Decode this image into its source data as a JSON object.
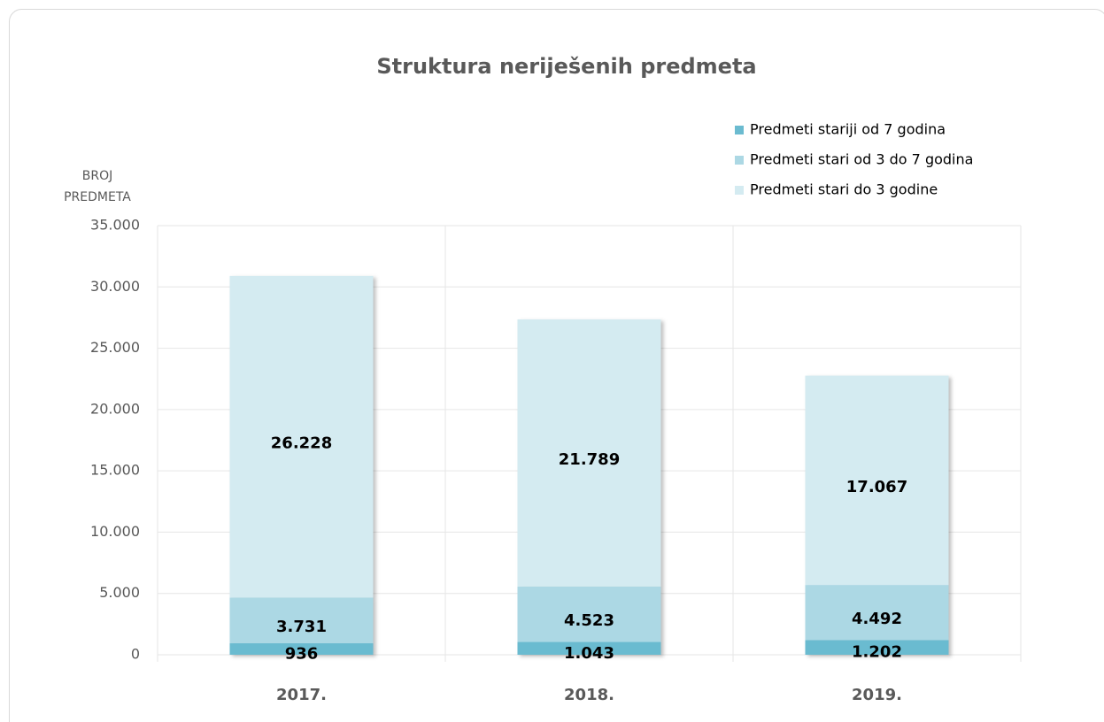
{
  "chart_data": {
    "type": "stacked_bar",
    "title": "Struktura neriješenih predmeta",
    "y_label": [
      "BROJ",
      "PREDMETA"
    ],
    "categories": [
      "2017.",
      "2018.",
      "2019."
    ],
    "series": [
      {
        "name": "Predmeti stariji od 7 godina",
        "color": "#6bbbd0",
        "values": [
          936,
          1043,
          1202
        ],
        "value_labels": [
          "936",
          "1.043",
          "1.202"
        ]
      },
      {
        "name": "Predmeti stari od 3 do 7 godina",
        "color": "#acd8e4",
        "values": [
          3731,
          4523,
          4492
        ],
        "value_labels": [
          "3.731",
          "4.523",
          "4.492"
        ]
      },
      {
        "name": "Predmeti stari do 3 godine",
        "color": "#d4ebf1",
        "values": [
          26228,
          21789,
          17067
        ],
        "value_labels": [
          "26.228",
          "21.789",
          "17.067"
        ]
      }
    ],
    "ylim": [
      0,
      35000
    ],
    "yticks": [
      0,
      {
        "value": 5000,
        "label": "5.000"
      },
      {
        "value": 10000,
        "label": "10.000"
      },
      {
        "value": 15000,
        "label": "15.000"
      },
      {
        "value": 20000,
        "label": "20.000"
      },
      {
        "value": 25000,
        "label": "25.000"
      },
      {
        "value": 30000,
        "label": "30.000"
      },
      {
        "value": 35000,
        "label": "35.000"
      }
    ],
    "grid": true,
    "legend": "top-right"
  }
}
